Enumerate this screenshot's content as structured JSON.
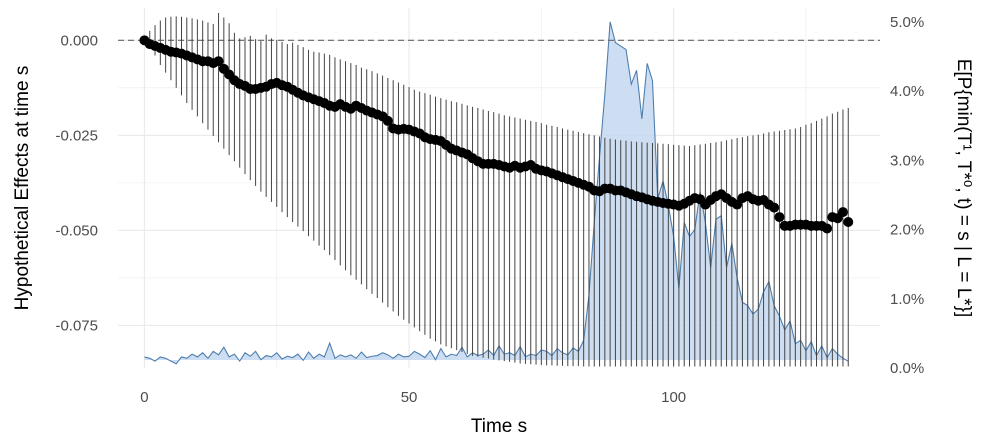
{
  "chart_data": {
    "type": "line",
    "xlabel": "Time s",
    "ylabel_left": "Hypothetical Effects at time s",
    "ylabel_right": "E[P{min(T¹, T*⁰, t) = s | L = L*}]",
    "x_ticks": [
      0,
      50,
      100
    ],
    "y_left_ticks": [
      0.0,
      -0.025,
      -0.05,
      -0.075
    ],
    "y_left_tick_labels": [
      "0.000",
      "-0.025",
      "-0.050",
      "-0.075"
    ],
    "y_right_ticks": [
      0,
      1,
      2,
      3,
      4,
      5
    ],
    "y_right_tick_labels": [
      "0.0%",
      "1.0%",
      "2.0%",
      "3.0%",
      "4.0%",
      "5.0%"
    ],
    "xlim": [
      -5,
      139
    ],
    "ylim_left": [
      -0.0862,
      0.0085
    ],
    "ylim_right_percent": [
      0,
      5.2
    ],
    "reference_line": {
      "y": 0,
      "style": "dashed"
    },
    "grid": true,
    "effect_series": {
      "x": [
        0,
        1,
        2,
        3,
        4,
        5,
        6,
        7,
        8,
        9,
        10,
        11,
        12,
        13,
        14,
        15,
        16,
        17,
        18,
        19,
        20,
        21,
        22,
        23,
        24,
        25,
        26,
        27,
        28,
        29,
        30,
        31,
        32,
        33,
        34,
        35,
        36,
        37,
        38,
        39,
        40,
        41,
        42,
        43,
        44,
        45,
        46,
        47,
        48,
        49,
        50,
        51,
        52,
        53,
        54,
        55,
        56,
        57,
        58,
        59,
        60,
        61,
        62,
        63,
        64,
        65,
        66,
        67,
        68,
        69,
        70,
        71,
        72,
        73,
        74,
        75,
        76,
        77,
        78,
        79,
        80,
        81,
        82,
        83,
        84,
        85,
        86,
        87,
        88,
        89,
        90,
        91,
        92,
        93,
        94,
        95,
        96,
        97,
        98,
        99,
        100,
        101,
        102,
        103,
        104,
        105,
        106,
        107,
        108,
        109,
        110,
        111,
        112,
        113,
        114,
        115,
        116,
        117,
        118,
        119,
        120,
        121,
        122,
        123,
        124,
        125,
        126,
        127,
        128,
        129,
        130,
        131,
        132,
        133
      ],
      "estimate": [
        0.0,
        -0.001,
        -0.0015,
        -0.002,
        -0.0025,
        -0.003,
        -0.0032,
        -0.0035,
        -0.004,
        -0.0045,
        -0.005,
        -0.0055,
        -0.0055,
        -0.006,
        -0.0055,
        -0.0075,
        -0.009,
        -0.0105,
        -0.0115,
        -0.012,
        -0.0128,
        -0.0128,
        -0.0125,
        -0.0122,
        -0.0115,
        -0.0112,
        -0.0118,
        -0.0122,
        -0.013,
        -0.0138,
        -0.0145,
        -0.015,
        -0.0155,
        -0.016,
        -0.0165,
        -0.0172,
        -0.0175,
        -0.0168,
        -0.0175,
        -0.018,
        -0.0172,
        -0.0178,
        -0.0185,
        -0.019,
        -0.0195,
        -0.02,
        -0.0212,
        -0.0232,
        -0.0235,
        -0.0233,
        -0.0235,
        -0.024,
        -0.0245,
        -0.0255,
        -0.026,
        -0.0262,
        -0.0265,
        -0.0275,
        -0.0285,
        -0.029,
        -0.0295,
        -0.03,
        -0.031,
        -0.0318,
        -0.0325,
        -0.0325,
        -0.0325,
        -0.0328,
        -0.0332,
        -0.0335,
        -0.033,
        -0.0335,
        -0.0332,
        -0.0328,
        -0.0338,
        -0.0342,
        -0.0345,
        -0.035,
        -0.0355,
        -0.036,
        -0.0365,
        -0.037,
        -0.0375,
        -0.038,
        -0.0385,
        -0.0395,
        -0.0397,
        -0.039,
        -0.039,
        -0.0395,
        -0.0395,
        -0.04,
        -0.0405,
        -0.041,
        -0.0413,
        -0.0418,
        -0.0422,
        -0.0425,
        -0.0428,
        -0.043,
        -0.0432,
        -0.0435,
        -0.043,
        -0.0422,
        -0.0415,
        -0.0418,
        -0.0432,
        -0.042,
        -0.041,
        -0.0405,
        -0.0415,
        -0.0425,
        -0.0432,
        -0.0415,
        -0.041,
        -0.0418,
        -0.0422,
        -0.042,
        -0.0432,
        -0.044,
        -0.0465,
        -0.0488,
        -0.0488,
        -0.0485,
        -0.0485,
        -0.0485,
        -0.0488,
        -0.0488,
        -0.0488,
        -0.0495,
        -0.0465,
        -0.0468,
        -0.0452,
        -0.0478
      ],
      "ci_low": [
        0.0,
        -0.002,
        -0.004,
        -0.0065,
        -0.0085,
        -0.0105,
        -0.0125,
        -0.0145,
        -0.0165,
        -0.0183,
        -0.02,
        -0.0218,
        -0.0235,
        -0.0252,
        -0.0268,
        -0.0285,
        -0.0302,
        -0.0318,
        -0.0335,
        -0.0352,
        -0.0368,
        -0.0383,
        -0.0398,
        -0.0412,
        -0.0425,
        -0.0438,
        -0.0452,
        -0.0465,
        -0.0478,
        -0.049,
        -0.0502,
        -0.0515,
        -0.0527,
        -0.054,
        -0.0552,
        -0.0565,
        -0.0578,
        -0.0592,
        -0.0605,
        -0.0618,
        -0.063,
        -0.0642,
        -0.0655,
        -0.0667,
        -0.0678,
        -0.069,
        -0.0702,
        -0.0713,
        -0.0725,
        -0.0735,
        -0.0745,
        -0.0755,
        -0.0765,
        -0.0775,
        -0.0785,
        -0.0792,
        -0.08,
        -0.0805,
        -0.081,
        -0.0815,
        -0.082,
        -0.0825,
        -0.083,
        -0.0832,
        -0.0835,
        -0.0837,
        -0.084,
        -0.0842,
        -0.0844,
        -0.0846,
        -0.0848,
        -0.085,
        -0.0851,
        -0.0852,
        -0.0853,
        -0.0854,
        -0.0855,
        -0.0855,
        -0.0856,
        -0.0856,
        -0.0857,
        -0.0857,
        -0.0857,
        -0.0858,
        -0.0858,
        -0.0858,
        -0.0858,
        -0.0858,
        -0.0858,
        -0.0858,
        -0.0858,
        -0.0858,
        -0.0858,
        -0.0858,
        -0.0858,
        -0.0858,
        -0.0858,
        -0.0858,
        -0.0858,
        -0.0858,
        -0.0858,
        -0.0858,
        -0.0858,
        -0.0858,
        -0.0858,
        -0.0858,
        -0.0858,
        -0.0858,
        -0.0858,
        -0.0858,
        -0.0858,
        -0.0858,
        -0.0858,
        -0.0858,
        -0.0858,
        -0.0858,
        -0.0858,
        -0.0858,
        -0.0858,
        -0.0858,
        -0.0858,
        -0.0858,
        -0.0858,
        -0.0858,
        -0.0858,
        -0.0858,
        -0.0858,
        -0.0858,
        -0.0858,
        -0.0858,
        -0.0858,
        -0.0858,
        -0.0858,
        -0.0858
      ],
      "ci_high": [
        0.0,
        0.0025,
        0.004,
        0.0052,
        0.006,
        0.0062,
        0.0063,
        0.0062,
        0.006,
        0.0058,
        0.0055,
        0.0052,
        0.0047,
        0.0043,
        0.0072,
        0.006,
        0.0045,
        0.002,
        0.0005,
        0.0008,
        0.0012,
        0.0003,
        -0.0002,
        0.0015,
        0.0005,
        0.0001,
        -0.0004,
        -0.001,
        -0.0006,
        -0.0012,
        -0.0018,
        -0.0025,
        -0.003,
        -0.0032,
        -0.0035,
        -0.0038,
        -0.0045,
        -0.005,
        -0.0055,
        -0.006,
        -0.0065,
        -0.0072,
        -0.0076,
        -0.0081,
        -0.0087,
        -0.0093,
        -0.0099,
        -0.0105,
        -0.0111,
        -0.0117,
        -0.0123,
        -0.013,
        -0.0135,
        -0.0139,
        -0.0143,
        -0.0148,
        -0.0152,
        -0.0156,
        -0.016,
        -0.0163,
        -0.0167,
        -0.0171,
        -0.0175,
        -0.0178,
        -0.0182,
        -0.0186,
        -0.0189,
        -0.0193,
        -0.0197,
        -0.02,
        -0.0203,
        -0.0206,
        -0.0209,
        -0.0212,
        -0.0215,
        -0.0218,
        -0.0222,
        -0.0225,
        -0.0228,
        -0.0232,
        -0.0235,
        -0.0238,
        -0.0241,
        -0.0244,
        -0.0247,
        -0.025,
        -0.0253,
        -0.0256,
        -0.0259,
        -0.0261,
        -0.0263,
        -0.0264,
        -0.0266,
        -0.0267,
        -0.0268,
        -0.0269,
        -0.027,
        -0.0271,
        -0.0272,
        -0.0273,
        -0.0275,
        -0.0276,
        -0.0277,
        -0.0278,
        -0.0276,
        -0.0274,
        -0.0272,
        -0.027,
        -0.0268,
        -0.0266,
        -0.0263,
        -0.026,
        -0.0257,
        -0.0255,
        -0.0252,
        -0.025,
        -0.0248,
        -0.0245,
        -0.0242,
        -0.024,
        -0.0238,
        -0.0236,
        -0.0234,
        -0.0232,
        -0.0228,
        -0.0222,
        -0.0218,
        -0.0212,
        -0.0206,
        -0.02,
        -0.0193,
        -0.0188,
        -0.0182,
        -0.0178
      ]
    },
    "probability_series": {
      "x": [
        0,
        1,
        2,
        3,
        4,
        5,
        6,
        7,
        8,
        9,
        10,
        11,
        12,
        13,
        14,
        15,
        16,
        17,
        18,
        19,
        20,
        21,
        22,
        23,
        24,
        25,
        26,
        27,
        28,
        29,
        30,
        31,
        32,
        33,
        34,
        35,
        36,
        37,
        38,
        39,
        40,
        41,
        42,
        43,
        44,
        45,
        46,
        47,
        48,
        49,
        50,
        51,
        52,
        53,
        54,
        55,
        56,
        57,
        58,
        59,
        60,
        61,
        62,
        63,
        64,
        65,
        66,
        67,
        68,
        69,
        70,
        71,
        72,
        73,
        74,
        75,
        76,
        77,
        78,
        79,
        80,
        81,
        82,
        83,
        84,
        85,
        86,
        87,
        88,
        89,
        90,
        91,
        92,
        93,
        94,
        95,
        96,
        97,
        98,
        99,
        100,
        101,
        102,
        103,
        104,
        105,
        106,
        107,
        108,
        109,
        110,
        111,
        112,
        113,
        114,
        115,
        116,
        117,
        118,
        119,
        120,
        121,
        122,
        123,
        124,
        125,
        126,
        127,
        128,
        129,
        130,
        131,
        132,
        133
      ],
      "percent": [
        0.16,
        0.14,
        0.1,
        0.16,
        0.14,
        0.1,
        0.06,
        0.16,
        0.14,
        0.2,
        0.16,
        0.22,
        0.14,
        0.24,
        0.19,
        0.3,
        0.16,
        0.2,
        0.1,
        0.22,
        0.17,
        0.24,
        0.12,
        0.18,
        0.16,
        0.22,
        0.13,
        0.17,
        0.15,
        0.2,
        0.11,
        0.23,
        0.14,
        0.2,
        0.16,
        0.36,
        0.14,
        0.19,
        0.16,
        0.19,
        0.14,
        0.23,
        0.15,
        0.17,
        0.18,
        0.22,
        0.19,
        0.14,
        0.2,
        0.16,
        0.17,
        0.24,
        0.2,
        0.15,
        0.25,
        0.12,
        0.28,
        0.16,
        0.2,
        0.18,
        0.3,
        0.16,
        0.22,
        0.18,
        0.2,
        0.26,
        0.18,
        0.32,
        0.2,
        0.22,
        0.18,
        0.31,
        0.16,
        0.2,
        0.18,
        0.26,
        0.24,
        0.18,
        0.28,
        0.22,
        0.19,
        0.29,
        0.24,
        0.4,
        1.05,
        2.1,
        3.05,
        3.95,
        5.0,
        4.7,
        4.65,
        4.6,
        4.1,
        4.3,
        3.6,
        4.4,
        4.15,
        2.45,
        2.7,
        2.35,
        1.9,
        1.15,
        2.1,
        1.9,
        2.0,
        2.55,
        2.1,
        1.45,
        2.15,
        2.2,
        1.45,
        1.8,
        1.3,
        0.95,
        0.9,
        0.78,
        0.85,
        1.1,
        1.25,
        0.9,
        0.75,
        0.55,
        0.68,
        0.35,
        0.4,
        0.25,
        0.38,
        0.18,
        0.32,
        0.15,
        0.28,
        0.2,
        0.14,
        0.1
      ]
    }
  },
  "colors": {
    "background": "#ffffff",
    "grid_line": "#ebebeb",
    "zero_line": "#666666",
    "errorbar": "#444444",
    "point": "#000000",
    "area_fill": "#c6d8f0",
    "area_line": "#4f7fae",
    "tick_text": "#4d4d4d",
    "title_text": "#000000"
  }
}
